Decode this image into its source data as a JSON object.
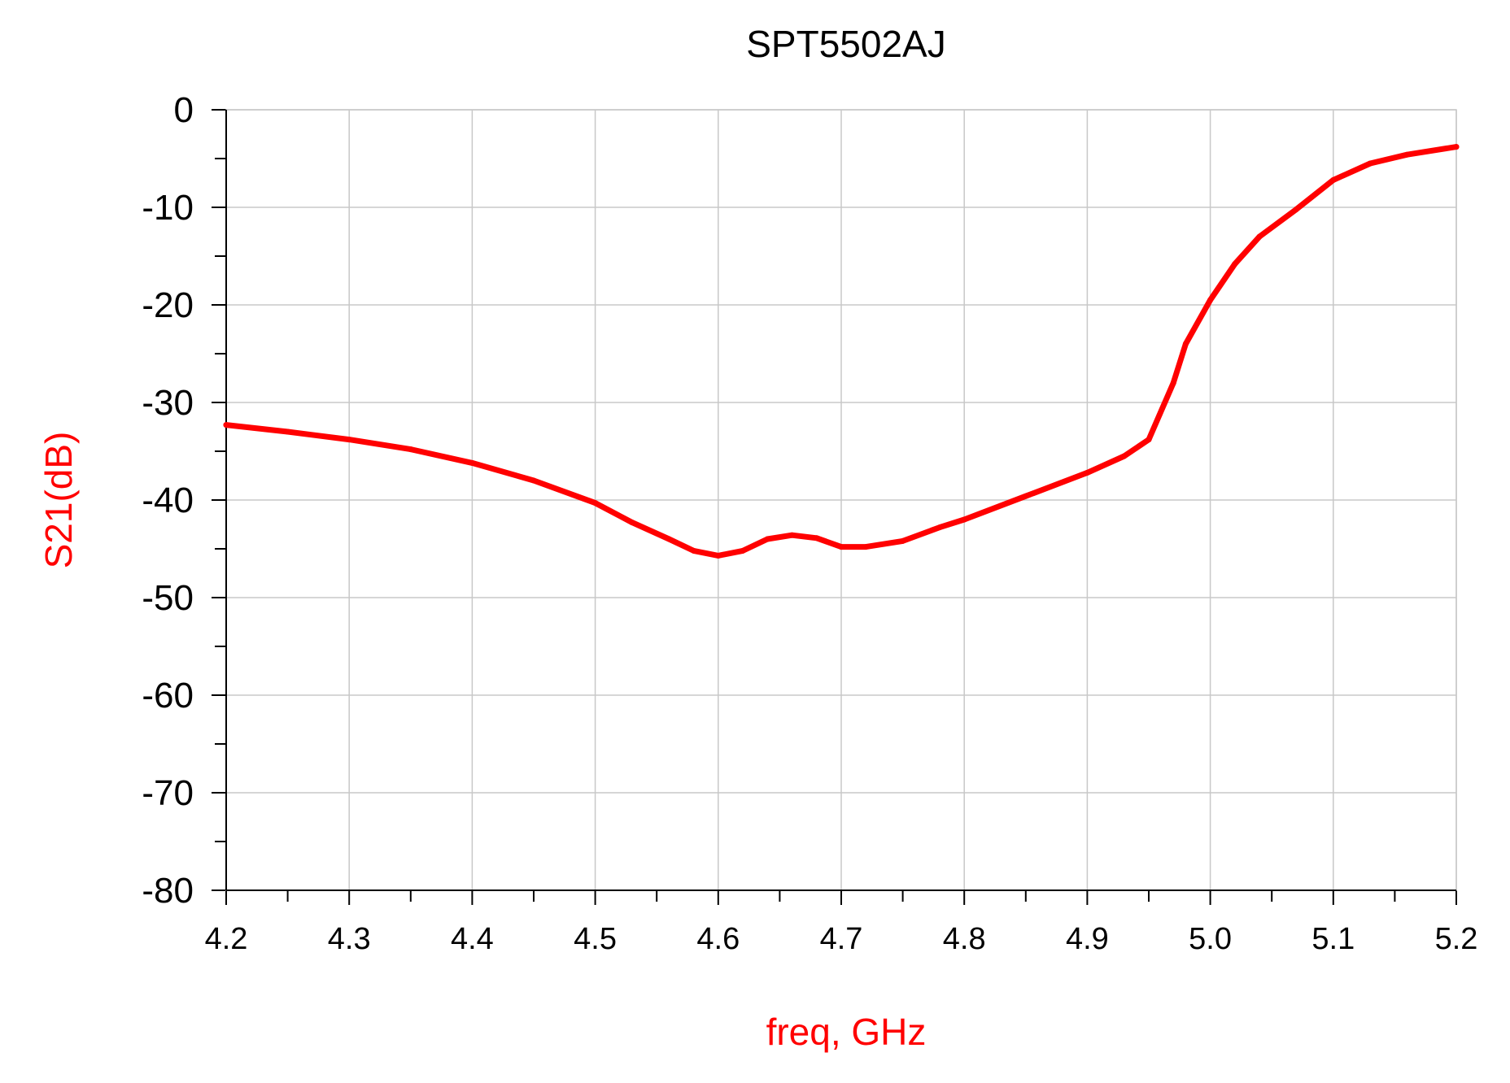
{
  "chart_data": {
    "type": "line",
    "title": "SPT5502AJ",
    "xlabel": "freq, GHz",
    "ylabel": "S21(dB)",
    "xlim": [
      4.2,
      5.2
    ],
    "ylim": [
      -80,
      0
    ],
    "x_ticks": [
      4.2,
      4.3,
      4.4,
      4.5,
      4.6,
      4.7,
      4.8,
      4.9,
      5.0,
      5.1,
      5.2
    ],
    "x_tick_labels": [
      "4.2",
      "4.3",
      "4.4",
      "4.5",
      "4.6",
      "4.7",
      "4.8",
      "4.9",
      "5.0",
      "5.1",
      "5.2"
    ],
    "y_ticks": [
      0,
      -10,
      -20,
      -30,
      -40,
      -50,
      -60,
      -70,
      -80
    ],
    "y_tick_labels": [
      "0",
      "-10",
      "-20",
      "-30",
      "-40",
      "-50",
      "-60",
      "-70",
      "-80"
    ],
    "grid": true,
    "colors": {
      "series": "#ff0000",
      "axis_label": "#ff0000",
      "grid": "#c8c8c8",
      "axis": "#000000"
    },
    "series": [
      {
        "name": "S21(dB)",
        "x": [
          4.2,
          4.25,
          4.3,
          4.35,
          4.4,
          4.45,
          4.5,
          4.53,
          4.56,
          4.58,
          4.6,
          4.62,
          4.64,
          4.66,
          4.68,
          4.7,
          4.72,
          4.75,
          4.78,
          4.8,
          4.85,
          4.9,
          4.93,
          4.95,
          4.97,
          4.98,
          5.0,
          5.02,
          5.04,
          5.07,
          5.1,
          5.13,
          5.16,
          5.2
        ],
        "values": [
          -32.3,
          -33.0,
          -33.8,
          -34.8,
          -36.2,
          -38.0,
          -40.3,
          -42.3,
          -44.0,
          -45.2,
          -45.7,
          -45.2,
          -44.0,
          -43.6,
          -43.9,
          -44.8,
          -44.8,
          -44.2,
          -42.8,
          -42.0,
          -39.6,
          -37.2,
          -35.5,
          -33.8,
          -28.0,
          -24.0,
          -19.5,
          -15.8,
          -13.0,
          -10.2,
          -7.2,
          -5.5,
          -4.6,
          -3.8
        ]
      }
    ]
  }
}
